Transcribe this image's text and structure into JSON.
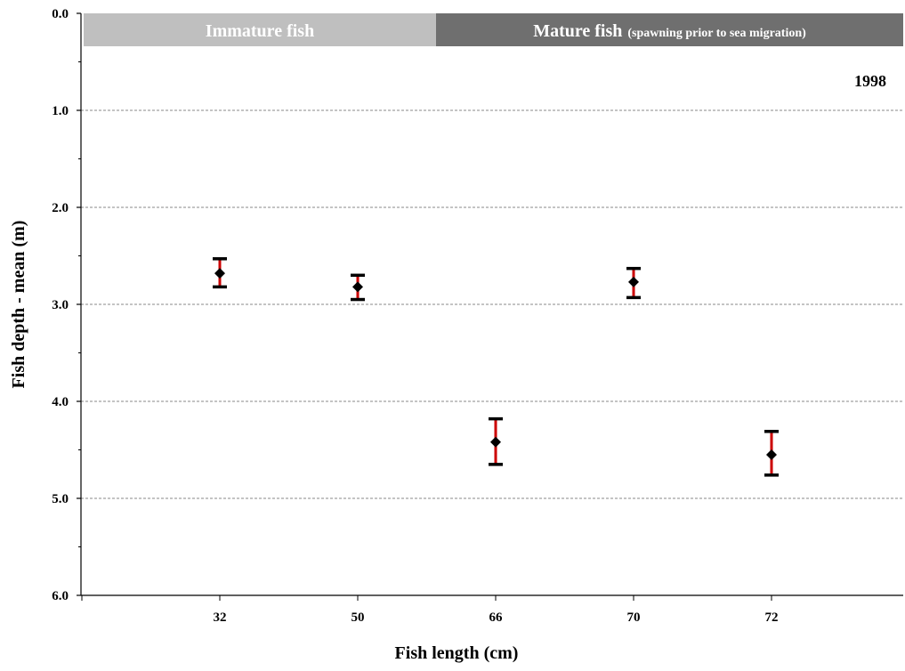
{
  "chart_data": {
    "type": "scatter",
    "xlabel": "Fish length (cm)",
    "ylabel": "Fish depth - mean (m)",
    "categories": [
      "32",
      "50",
      "66",
      "70",
      "72"
    ],
    "values": [
      2.68,
      2.82,
      4.42,
      2.77,
      4.55
    ],
    "error_low": [
      2.82,
      2.95,
      4.65,
      2.93,
      4.76
    ],
    "error_high": [
      2.53,
      2.7,
      4.18,
      2.63,
      4.31
    ],
    "ylim": [
      0.0,
      6.0
    ],
    "y_inverted": true,
    "y_ticks": [
      "0.0",
      "1.0",
      "2.0",
      "3.0",
      "4.0",
      "5.0",
      "6.0"
    ],
    "grid": "horizontal dashed",
    "annotations": {
      "immature_label": "Immature fish",
      "mature_label": "Mature fish",
      "mature_sub": "(spawning prior to sea migration)",
      "year": "1998"
    },
    "colors": {
      "marker": "#000000",
      "error_bar": "#cc0000",
      "immature_band": "#bfbfbf",
      "mature_band": "#6f6f6f",
      "grid": "#888888"
    }
  }
}
